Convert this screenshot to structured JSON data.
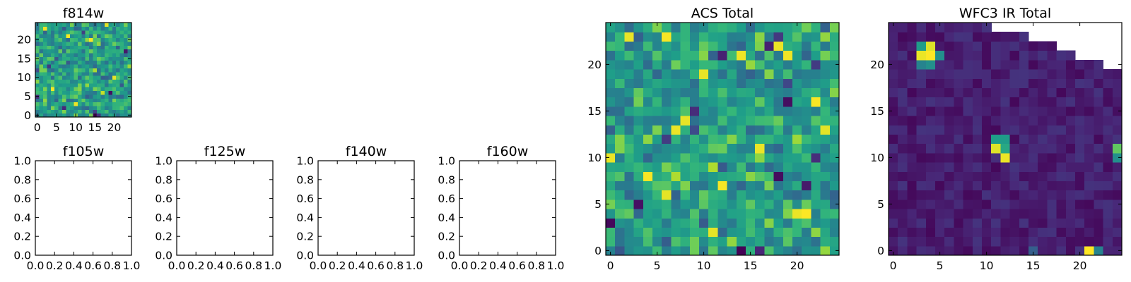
{
  "colormap": {
    "name": "viridis",
    "stops": [
      "#440154",
      "#482878",
      "#3e4989",
      "#31688e",
      "#26828e",
      "#1f9e89",
      "#35b779",
      "#6ece58",
      "#b5de2b",
      "#fde725"
    ]
  },
  "chart_data": [
    {
      "id": "f814w",
      "type": "heatmap",
      "title": "f814w",
      "xlabel": "",
      "ylabel": "",
      "grid_size": [
        25,
        25
      ],
      "xlim": [
        -0.5,
        24.5
      ],
      "ylim": [
        -0.5,
        24.5
      ],
      "xticks": [
        0,
        5,
        10,
        15,
        20
      ],
      "xtick_labels": [
        "0",
        "5",
        "10",
        "15",
        "20"
      ],
      "yticks": [
        0,
        5,
        10,
        15,
        20
      ],
      "ytick_labels": [
        "0",
        "5",
        "10",
        "15",
        "20"
      ],
      "pattern": "noise",
      "seed": 11,
      "hot_cells": [
        [
          2,
          23
        ],
        [
          8,
          21
        ],
        [
          14,
          20
        ],
        [
          18,
          24
        ],
        [
          4,
          7
        ],
        [
          10,
          3
        ],
        [
          20,
          10
        ]
      ],
      "dark_cells": [
        [
          3,
          13
        ],
        [
          7,
          2
        ],
        [
          12,
          22
        ],
        [
          15,
          0
        ],
        [
          16,
          0
        ],
        [
          0,
          5
        ],
        [
          23,
          17
        ],
        [
          19,
          6
        ]
      ]
    },
    {
      "id": "f105w",
      "type": "heatmap",
      "title": "f105w",
      "empty": true,
      "xlim": [
        0,
        1
      ],
      "ylim": [
        0,
        1
      ],
      "xticks": [
        0,
        0.2,
        0.4,
        0.6,
        0.8,
        1.0
      ],
      "xtick_labels": [
        "0.0",
        "0.2",
        "0.4",
        "0.6",
        "0.8",
        "1.0"
      ],
      "yticks": [
        0,
        0.2,
        0.4,
        0.6,
        0.8,
        1.0
      ],
      "ytick_labels": [
        "0.0",
        "0.2",
        "0.4",
        "0.6",
        "0.8",
        "1.0"
      ]
    },
    {
      "id": "f125w",
      "type": "heatmap",
      "title": "f125w",
      "empty": true,
      "xlim": [
        0,
        1
      ],
      "ylim": [
        0,
        1
      ],
      "xticks": [
        0,
        0.2,
        0.4,
        0.6,
        0.8,
        1.0
      ],
      "xtick_labels": [
        "0.0",
        "0.2",
        "0.4",
        "0.6",
        "0.8",
        "1.0"
      ],
      "yticks": [
        0,
        0.2,
        0.4,
        0.6,
        0.8,
        1.0
      ],
      "ytick_labels": [
        "0.0",
        "0.2",
        "0.4",
        "0.6",
        "0.8",
        "1.0"
      ]
    },
    {
      "id": "f140w",
      "type": "heatmap",
      "title": "f140w",
      "empty": true,
      "xlim": [
        0,
        1
      ],
      "ylim": [
        0,
        1
      ],
      "xticks": [
        0,
        0.2,
        0.4,
        0.6,
        0.8,
        1.0
      ],
      "xtick_labels": [
        "0.0",
        "0.2",
        "0.4",
        "0.6",
        "0.8",
        "1.0"
      ],
      "yticks": [
        0,
        0.2,
        0.4,
        0.6,
        0.8,
        1.0
      ],
      "ytick_labels": [
        "0.0",
        "0.2",
        "0.4",
        "0.6",
        "0.8",
        "1.0"
      ]
    },
    {
      "id": "f160w",
      "type": "heatmap",
      "title": "f160w",
      "empty": true,
      "xlim": [
        0,
        1
      ],
      "ylim": [
        0,
        1
      ],
      "xticks": [
        0,
        0.2,
        0.4,
        0.6,
        0.8,
        1.0
      ],
      "xtick_labels": [
        "0.0",
        "0.2",
        "0.4",
        "0.6",
        "0.8",
        "1.0"
      ],
      "yticks": [
        0,
        0.2,
        0.4,
        0.6,
        0.8,
        1.0
      ],
      "ytick_labels": [
        "0.0",
        "0.2",
        "0.4",
        "0.6",
        "0.8",
        "1.0"
      ]
    },
    {
      "id": "acs-total",
      "type": "heatmap",
      "title": "ACS Total",
      "grid_size": [
        25,
        25
      ],
      "xlim": [
        -0.5,
        24.5
      ],
      "ylim": [
        -0.5,
        24.5
      ],
      "xticks": [
        0,
        5,
        10,
        15,
        20
      ],
      "xtick_labels": [
        "0",
        "5",
        "10",
        "15",
        "20"
      ],
      "yticks": [
        0,
        5,
        10,
        15,
        20
      ],
      "ytick_labels": [
        "0",
        "5",
        "10",
        "15",
        "20"
      ],
      "pattern": "noise",
      "seed": 37,
      "hot_cells": [
        [
          2,
          23
        ],
        [
          6,
          23
        ],
        [
          10,
          19
        ],
        [
          14,
          21
        ],
        [
          18,
          22
        ],
        [
          22,
          16
        ],
        [
          8,
          14
        ],
        [
          16,
          11
        ],
        [
          4,
          8
        ],
        [
          12,
          7
        ],
        [
          20,
          4
        ],
        [
          23,
          13
        ],
        [
          0,
          10
        ],
        [
          11,
          2
        ],
        [
          19,
          21
        ],
        [
          7,
          13
        ],
        [
          21,
          4
        ],
        [
          6,
          6
        ]
      ],
      "dark_cells": [
        [
          18,
          23
        ],
        [
          17,
          22
        ],
        [
          22,
          20
        ],
        [
          6,
          12
        ],
        [
          19,
          16
        ],
        [
          18,
          8
        ],
        [
          14,
          0
        ],
        [
          16,
          0
        ],
        [
          0,
          3
        ],
        [
          22,
          10
        ],
        [
          12,
          21
        ],
        [
          3,
          5
        ],
        [
          21,
          7
        ],
        [
          9,
          15
        ]
      ]
    },
    {
      "id": "wfc3-ir-total",
      "type": "heatmap",
      "title": "WFC3 IR Total",
      "grid_size": [
        25,
        25
      ],
      "xlim": [
        -0.5,
        24.5
      ],
      "ylim": [
        -0.5,
        24.5
      ],
      "xticks": [
        0,
        5,
        10,
        15,
        20
      ],
      "xtick_labels": [
        "0",
        "5",
        "10",
        "15",
        "20"
      ],
      "yticks": [
        0,
        5,
        10,
        15,
        20
      ],
      "ytick_labels": [
        "0",
        "5",
        "10",
        "15",
        "20"
      ],
      "pattern": "mostly-low",
      "seed": 5,
      "masked_top_right": [
        {
          "row": 24,
          "from_col": 11
        },
        {
          "row": 23,
          "from_col": 15
        },
        {
          "row": 22,
          "from_col": 18
        },
        {
          "row": 21,
          "from_col": 20
        },
        {
          "row": 20,
          "from_col": 23
        }
      ],
      "bright_cells": [
        {
          "x": 3,
          "y": 21,
          "level": 0.97
        },
        {
          "x": 4,
          "y": 21,
          "level": 1.0
        },
        {
          "x": 3,
          "y": 22,
          "level": 0.55
        },
        {
          "x": 4,
          "y": 22,
          "level": 0.95
        },
        {
          "x": 5,
          "y": 21,
          "level": 0.5
        },
        {
          "x": 3,
          "y": 20,
          "level": 0.45
        },
        {
          "x": 4,
          "y": 20,
          "level": 0.5
        },
        {
          "x": 11,
          "y": 12,
          "level": 0.55
        },
        {
          "x": 12,
          "y": 12,
          "level": 0.55
        },
        {
          "x": 11,
          "y": 11,
          "level": 0.95
        },
        {
          "x": 12,
          "y": 11,
          "level": 0.6
        },
        {
          "x": 12,
          "y": 10,
          "level": 0.97
        },
        {
          "x": 24,
          "y": 11,
          "level": 0.75
        },
        {
          "x": 24,
          "y": 10,
          "level": 0.5
        },
        {
          "x": 21,
          "y": 0,
          "level": 1.0
        },
        {
          "x": 22,
          "y": 0,
          "level": 0.45
        },
        {
          "x": 15,
          "y": 0,
          "level": 0.3
        }
      ]
    }
  ]
}
